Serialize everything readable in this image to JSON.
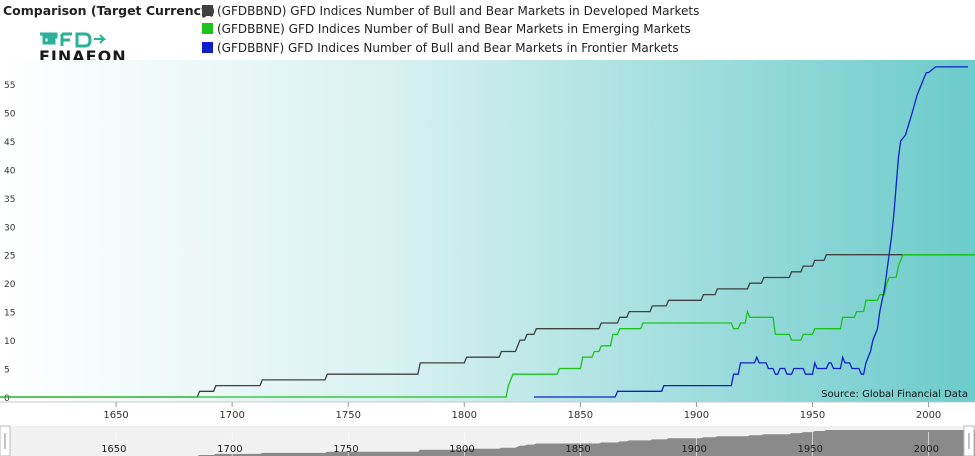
{
  "header": {
    "title": "Comparison (Target Currency)",
    "logo_text_top": "GFD",
    "logo_text_bottom": "FINAEON"
  },
  "legend": [
    {
      "label": "(GFDBBND) GFD Indices Number of Bull and Bear Markets in Developed Markets",
      "color": "#404040"
    },
    {
      "label": "(GFDBBNE) GFD Indices Number of Bull and Bear Markets in Emerging Markets",
      "color": "#1ec21e"
    },
    {
      "label": "(GFDBBNF) GFD Indices Number of Bull and Bear Markets in Frontier Markets",
      "color": "#1020c8"
    }
  ],
  "source": "Source: Global Financial Data",
  "colors": {
    "plot_bg_start": "#ffffff",
    "plot_bg_end": "#6ccbcb",
    "navigator_fill": "#8a8a8a",
    "logo_green": "#2bb19a",
    "logo_dark": "#1a1a1a"
  },
  "chart_data": {
    "type": "line",
    "xlim": [
      1600,
      2020
    ],
    "ylim": [
      0,
      57
    ],
    "x_ticks": [
      1650,
      1700,
      1750,
      1800,
      1850,
      1900,
      1950,
      2000
    ],
    "y_ticks": [
      0,
      5,
      10,
      15,
      20,
      25,
      30,
      35,
      40,
      45,
      50,
      55
    ],
    "navigator_ticks": [
      1650,
      1700,
      1750,
      1800,
      1850,
      1900,
      1950,
      2000
    ],
    "grid": false,
    "legend_position": "top",
    "series": [
      {
        "name": "(GFDBBND) GFD Indices Number of Bull and Bear Markets in Developed Markets",
        "color": "#404040",
        "points": [
          [
            1600,
            0
          ],
          [
            1685,
            0
          ],
          [
            1686,
            1
          ],
          [
            1692,
            1
          ],
          [
            1693,
            2
          ],
          [
            1712,
            2
          ],
          [
            1713,
            3
          ],
          [
            1740,
            3
          ],
          [
            1741,
            4
          ],
          [
            1780,
            4
          ],
          [
            1781,
            6
          ],
          [
            1800,
            6
          ],
          [
            1801,
            7
          ],
          [
            1815,
            7
          ],
          [
            1816,
            8
          ],
          [
            1822,
            8
          ],
          [
            1823,
            9
          ],
          [
            1824,
            10
          ],
          [
            1826,
            10
          ],
          [
            1827,
            11
          ],
          [
            1830,
            11
          ],
          [
            1831,
            12
          ],
          [
            1858,
            12
          ],
          [
            1859,
            13
          ],
          [
            1866,
            13
          ],
          [
            1867,
            14
          ],
          [
            1870,
            14
          ],
          [
            1871,
            15
          ],
          [
            1880,
            15
          ],
          [
            1881,
            16
          ],
          [
            1887,
            16
          ],
          [
            1888,
            17
          ],
          [
            1902,
            17
          ],
          [
            1903,
            18
          ],
          [
            1908,
            18
          ],
          [
            1909,
            19
          ],
          [
            1922,
            19
          ],
          [
            1923,
            20
          ],
          [
            1928,
            20
          ],
          [
            1929,
            21
          ],
          [
            1940,
            21
          ],
          [
            1941,
            22
          ],
          [
            1945,
            22
          ],
          [
            1946,
            23
          ],
          [
            1950,
            23
          ],
          [
            1951,
            24
          ],
          [
            1955,
            24
          ],
          [
            1956,
            25
          ],
          [
            2020,
            25
          ]
        ]
      },
      {
        "name": "(GFDBBNE) GFD Indices Number of Bull and Bear Markets in Emerging Markets",
        "color": "#1ec21e",
        "points": [
          [
            1600,
            0
          ],
          [
            1818,
            0
          ],
          [
            1819,
            2
          ],
          [
            1820,
            3
          ],
          [
            1821,
            4
          ],
          [
            1840,
            4
          ],
          [
            1841,
            5
          ],
          [
            1850,
            5
          ],
          [
            1851,
            7
          ],
          [
            1855,
            7
          ],
          [
            1856,
            8
          ],
          [
            1858,
            8
          ],
          [
            1859,
            9
          ],
          [
            1863,
            9
          ],
          [
            1864,
            11
          ],
          [
            1866,
            11
          ],
          [
            1867,
            12
          ],
          [
            1876,
            12
          ],
          [
            1877,
            13
          ],
          [
            1915,
            13
          ],
          [
            1916,
            12
          ],
          [
            1918,
            12
          ],
          [
            1919,
            13
          ],
          [
            1921,
            13
          ],
          [
            1922,
            15
          ],
          [
            1923,
            14
          ],
          [
            1933,
            14
          ],
          [
            1934,
            11
          ],
          [
            1940,
            11
          ],
          [
            1941,
            10
          ],
          [
            1945,
            10
          ],
          [
            1946,
            11
          ],
          [
            1950,
            11
          ],
          [
            1951,
            12
          ],
          [
            1962,
            12
          ],
          [
            1963,
            14
          ],
          [
            1968,
            14
          ],
          [
            1969,
            15
          ],
          [
            1972,
            15
          ],
          [
            1973,
            17
          ],
          [
            1978,
            17
          ],
          [
            1979,
            18
          ],
          [
            1981,
            18
          ],
          [
            1982,
            20
          ],
          [
            1983,
            21
          ],
          [
            1986,
            21
          ],
          [
            1987,
            23
          ],
          [
            1989,
            25
          ],
          [
            2020,
            25
          ]
        ]
      },
      {
        "name": "(GFDBBNF) GFD Indices Number of Bull and Bear Markets in Frontier Markets",
        "color": "#1020c8",
        "points": [
          [
            1830,
            0
          ],
          [
            1865,
            0
          ],
          [
            1866,
            1
          ],
          [
            1885,
            1
          ],
          [
            1886,
            2
          ],
          [
            1915,
            2
          ],
          [
            1916,
            4
          ],
          [
            1918,
            4
          ],
          [
            1919,
            6
          ],
          [
            1925,
            6
          ],
          [
            1926,
            7
          ],
          [
            1927,
            6
          ],
          [
            1930,
            6
          ],
          [
            1931,
            5
          ],
          [
            1933,
            5
          ],
          [
            1934,
            4
          ],
          [
            1935,
            4
          ],
          [
            1936,
            5
          ],
          [
            1938,
            5
          ],
          [
            1939,
            4
          ],
          [
            1941,
            4
          ],
          [
            1942,
            5
          ],
          [
            1946,
            5
          ],
          [
            1947,
            4
          ],
          [
            1950,
            4
          ],
          [
            1951,
            6
          ],
          [
            1952,
            5
          ],
          [
            1956,
            5
          ],
          [
            1957,
            6
          ],
          [
            1958,
            6
          ],
          [
            1959,
            5
          ],
          [
            1962,
            5
          ],
          [
            1963,
            7
          ],
          [
            1964,
            6
          ],
          [
            1966,
            6
          ],
          [
            1967,
            5
          ],
          [
            1970,
            5
          ],
          [
            1971,
            4
          ],
          [
            1972,
            4
          ],
          [
            1973,
            6
          ],
          [
            1975,
            8
          ],
          [
            1976,
            10
          ],
          [
            1977,
            11
          ],
          [
            1978,
            12
          ],
          [
            1979,
            15
          ],
          [
            1980,
            17
          ],
          [
            1981,
            19
          ],
          [
            1982,
            22
          ],
          [
            1983,
            25
          ],
          [
            1984,
            28
          ],
          [
            1985,
            32
          ],
          [
            1986,
            37
          ],
          [
            1987,
            42
          ],
          [
            1988,
            45
          ],
          [
            1990,
            46
          ],
          [
            1993,
            50
          ],
          [
            1995,
            53
          ],
          [
            1997,
            55
          ],
          [
            1998,
            56
          ],
          [
            1999,
            57
          ],
          [
            2000,
            57
          ],
          [
            2003,
            58
          ],
          [
            2017,
            58
          ]
        ]
      }
    ]
  }
}
